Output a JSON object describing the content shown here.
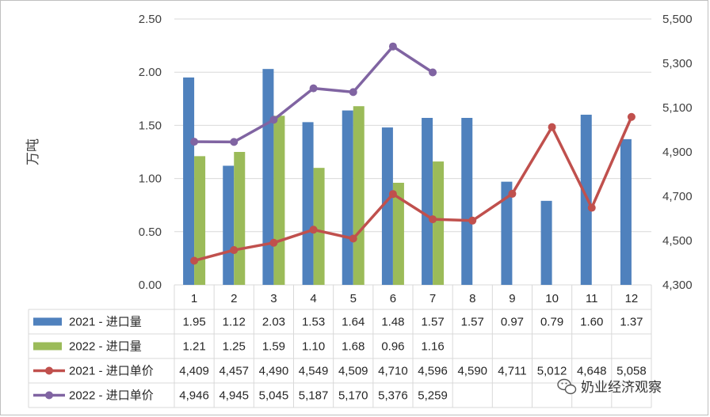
{
  "chart_data": {
    "type": "bar",
    "categories": [
      "1",
      "2",
      "3",
      "4",
      "5",
      "6",
      "7",
      "8",
      "9",
      "10",
      "11",
      "12"
    ],
    "ylabel": "万吨",
    "ylim": [
      0,
      2.5
    ],
    "y2lim": [
      4300,
      5500
    ],
    "y_ticks": [
      "0.00",
      "0.50",
      "1.00",
      "1.50",
      "2.00",
      "2.50"
    ],
    "y2_ticks": [
      "4,300",
      "4,500",
      "4,700",
      "4,900",
      "5,100",
      "5,300",
      "5,500"
    ],
    "series": [
      {
        "name": "2021 - 进口量",
        "kind": "bar",
        "axis": "left",
        "color": "#4f81bd",
        "values": [
          1.95,
          1.12,
          2.03,
          1.53,
          1.64,
          1.48,
          1.57,
          1.57,
          0.97,
          0.79,
          1.6,
          1.37
        ],
        "labels": [
          "1.95",
          "1.12",
          "2.03",
          "1.53",
          "1.64",
          "1.48",
          "1.57",
          "1.57",
          "0.97",
          "0.79",
          "1.60",
          "1.37"
        ]
      },
      {
        "name": "2022 - 进口量",
        "kind": "bar",
        "axis": "left",
        "color": "#9bbb59",
        "values": [
          1.21,
          1.25,
          1.59,
          1.1,
          1.68,
          0.96,
          1.16,
          null,
          null,
          null,
          null,
          null
        ],
        "labels": [
          "1.21",
          "1.25",
          "1.59",
          "1.10",
          "1.68",
          "0.96",
          "1.16",
          "",
          "",
          "",
          "",
          ""
        ]
      },
      {
        "name": "2021 - 进口单价",
        "kind": "line",
        "axis": "right",
        "color": "#c0504d",
        "values": [
          4409,
          4457,
          4490,
          4549,
          4509,
          4710,
          4596,
          4590,
          4711,
          5012,
          4648,
          5058
        ],
        "labels": [
          "4,409",
          "4,457",
          "4,490",
          "4,549",
          "4,509",
          "4,710",
          "4,596",
          "4,590",
          "4,711",
          "5,012",
          "4,648",
          "5,058"
        ]
      },
      {
        "name": "2022 - 进口单价",
        "kind": "line",
        "axis": "right",
        "color": "#8064a2",
        "values": [
          4946,
          4945,
          5045,
          5187,
          5170,
          5376,
          5259,
          null,
          null,
          null,
          null,
          null
        ],
        "labels": [
          "4,946",
          "4,945",
          "5,045",
          "5,187",
          "5,170",
          "5,376",
          "5,259",
          "",
          "",
          "",
          "",
          ""
        ]
      }
    ],
    "legend": "data-table",
    "grid": "horizontal"
  },
  "watermark": {
    "text": "奶业经济观察",
    "icon": "wechat-icon"
  }
}
